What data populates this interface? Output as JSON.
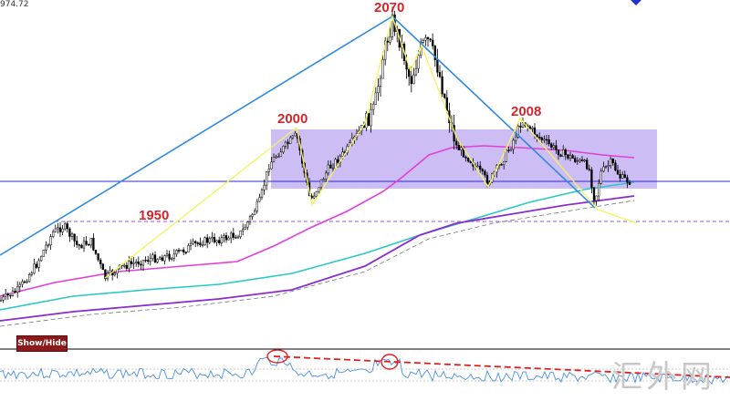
{
  "price_label": "974.72",
  "show_hide_label": "Show/Hide",
  "watermark": "汇外网",
  "annotations": {
    "peak": "2070",
    "first_high": "2000",
    "second_high": "2008",
    "support": "1950"
  },
  "colors": {
    "rectangle": "#b9a4f0",
    "trend_blue": "#2f8ae0",
    "zigzag": "#f4f45a",
    "ma_fast": "#e23ed8",
    "ma_cyan": "#2ac7c7",
    "ma_purple": "#8a2bd0",
    "label_red": "#d5242b",
    "oscillator": "#4a90e2",
    "osc_trend": "#e02020"
  },
  "chart_data": {
    "type": "candlestick",
    "title": "",
    "price_levels": [
      1950,
      2000,
      2008,
      2070
    ],
    "series": [
      {
        "name": "",
        "kind": "moving-average"
      },
      {
        "name": "",
        "kind": "moving-average"
      },
      {
        "name": "",
        "kind": "moving-average"
      },
      {
        "name": "",
        "kind": "oscillator"
      }
    ]
  }
}
